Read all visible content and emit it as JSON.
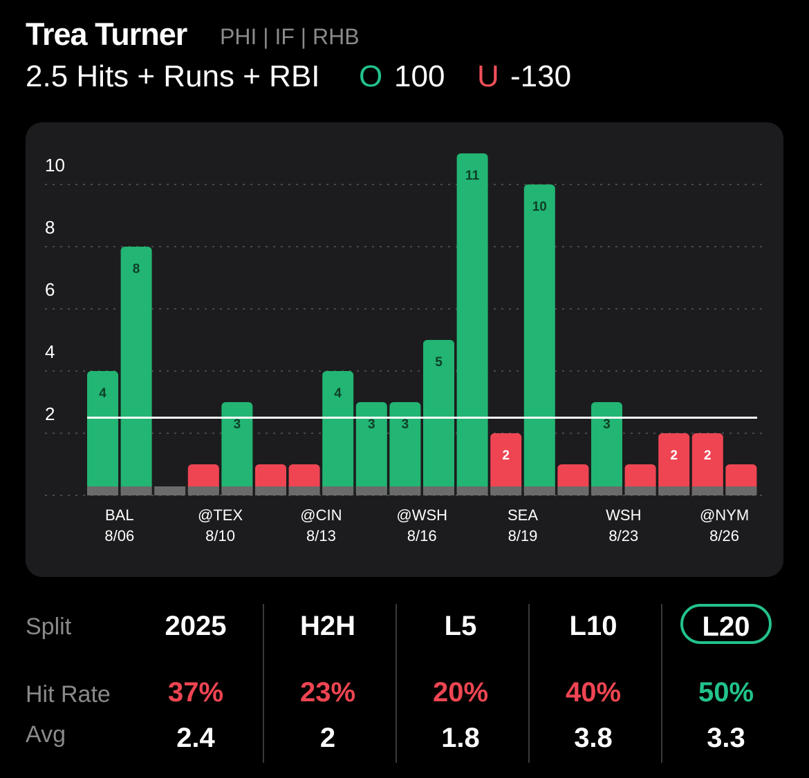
{
  "header": {
    "player_name": "Trea Turner",
    "player_meta": "PHI | IF | RHB",
    "prop_line": "2.5 Hits + Runs + RBI",
    "over_letter": "O",
    "over_odds": "100",
    "under_letter": "U",
    "under_odds": "-130"
  },
  "colors": {
    "over": "#22b573",
    "under": "#ef4552",
    "base": "#6b6b6b",
    "accent": "#22c38a"
  },
  "chart_data": {
    "type": "bar",
    "line": 2.5,
    "ylim": [
      0,
      11
    ],
    "yticks": [
      2,
      4,
      6,
      8,
      10
    ],
    "grid": true,
    "values": [
      4,
      8,
      0,
      1,
      3,
      1,
      1,
      4,
      3,
      3,
      5,
      11,
      2,
      10,
      1,
      3,
      1,
      2,
      2,
      1
    ],
    "value_labels": [
      "4",
      "8",
      "",
      "",
      "3",
      "",
      "",
      "4",
      "3",
      "3",
      "5",
      "11",
      "2",
      "10",
      "",
      "3",
      "",
      "2",
      "2",
      ""
    ],
    "x_labels": [
      {
        "bar_index": 0.5,
        "team": "BAL",
        "date": "8/06"
      },
      {
        "bar_index": 3.5,
        "team": "@TEX",
        "date": "8/10"
      },
      {
        "bar_index": 6.5,
        "team": "@CIN",
        "date": "8/13"
      },
      {
        "bar_index": 9.5,
        "team": "@WSH",
        "date": "8/16"
      },
      {
        "bar_index": 12.5,
        "team": "SEA",
        "date": "8/19"
      },
      {
        "bar_index": 15.5,
        "team": "WSH",
        "date": "8/23"
      },
      {
        "bar_index": 18.5,
        "team": "@NYM",
        "date": "8/26"
      }
    ]
  },
  "splits": {
    "row_labels": {
      "split": "Split",
      "hit_rate": "Hit Rate",
      "avg": "Avg"
    },
    "columns": [
      {
        "label": "2025",
        "hit_rate": "37%",
        "avg": "2.4",
        "status": "under",
        "selected": false
      },
      {
        "label": "H2H",
        "hit_rate": "23%",
        "avg": "2",
        "status": "under",
        "selected": false
      },
      {
        "label": "L5",
        "hit_rate": "20%",
        "avg": "1.8",
        "status": "under",
        "selected": false
      },
      {
        "label": "L10",
        "hit_rate": "40%",
        "avg": "3.8",
        "status": "under",
        "selected": false
      },
      {
        "label": "L20",
        "hit_rate": "50%",
        "avg": "3.3",
        "status": "over",
        "selected": true
      }
    ]
  }
}
